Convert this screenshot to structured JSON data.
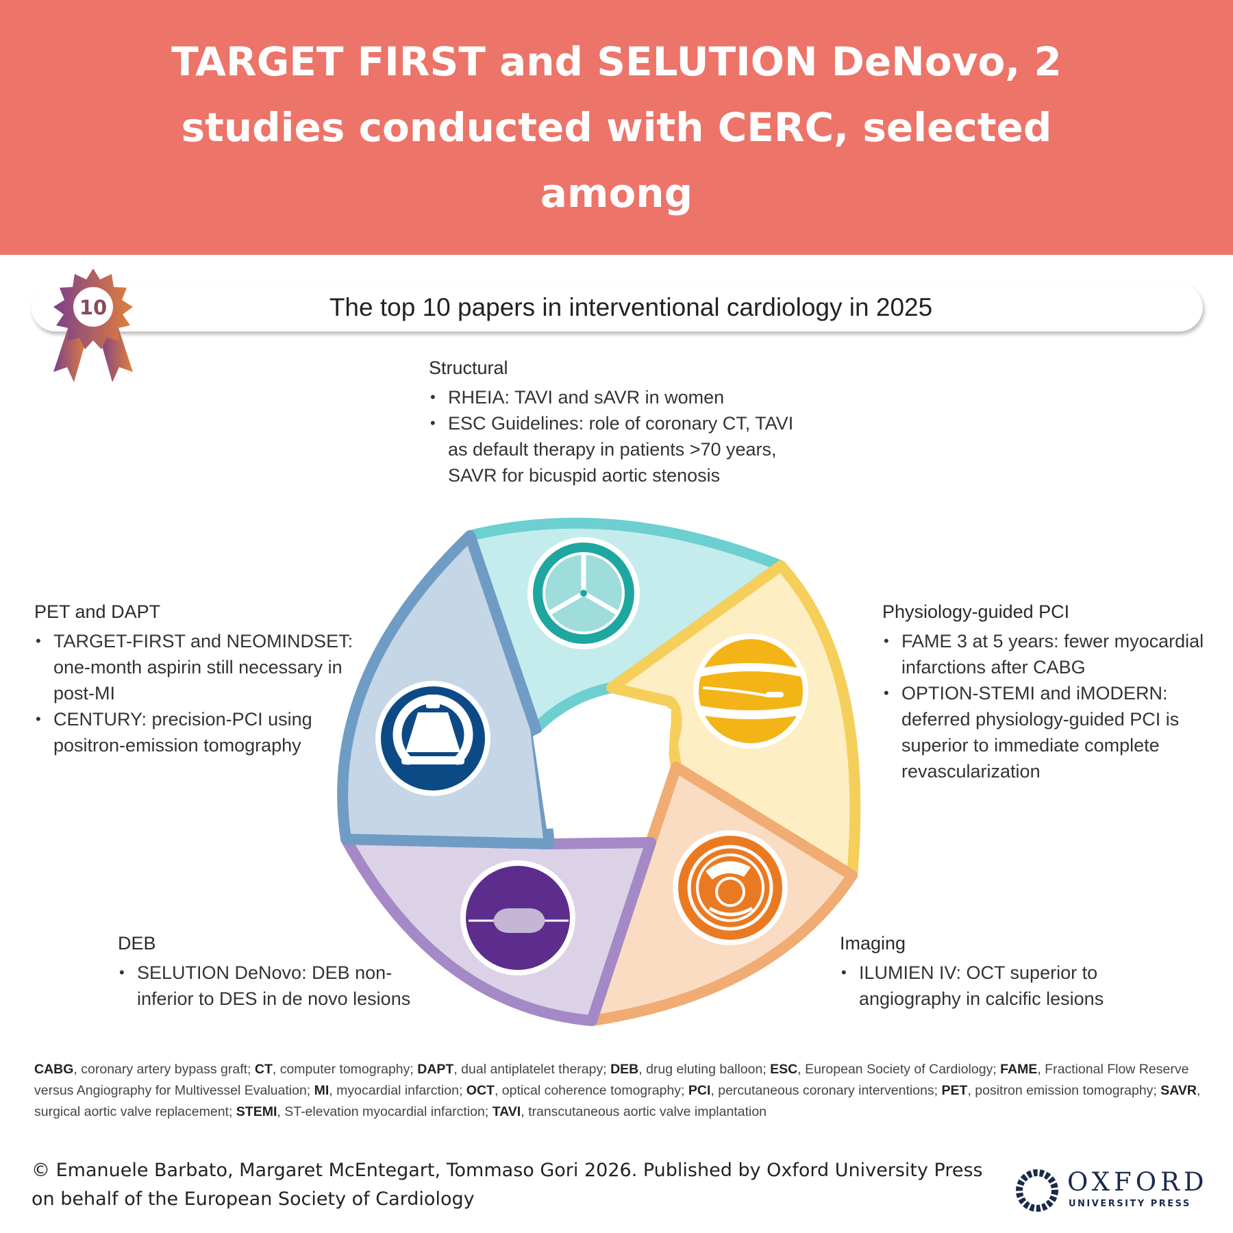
{
  "banner": {
    "title": "TARGET FIRST and SELUTION DeNovo, 2 studies conducted with CERC, selected among"
  },
  "figure": {
    "title": "The top 10 papers in interventional cardiology in 2025",
    "badge_number": "10"
  },
  "sections": {
    "structural": {
      "title": "Structural",
      "bullets": [
        "RHEIA: TAVI and sAVR in women",
        "ESC Guidelines: role of coronary CT, TAVI as default therapy in patients >70 years, SAVR for bicuspid aortic stenosis"
      ],
      "color": "#7dd3d3"
    },
    "physiology": {
      "title": "Physiology-guided PCI",
      "bullets": [
        "FAME 3 at 5 years: fewer myocardial infarctions after CABG",
        "OPTION-STEMI and iMODERN: deferred physiology-guided PCI is superior to immediate complete revascularization"
      ],
      "color": "#f6cf5a"
    },
    "imaging": {
      "title": "Imaging",
      "bullets": [
        "ILUMIEN IV: OCT superior to angiography in calcific lesions"
      ],
      "color": "#f0ac72"
    },
    "deb": {
      "title": "DEB",
      "bullets": [
        "SELUTION DeNovo: DEB non-inferior to DES in de novo lesions"
      ],
      "color": "#a489c6"
    },
    "pet": {
      "title": "PET and DAPT",
      "bullets": [
        "TARGET-FIRST and NEOMINDSET: one-month aspirin still necessary in post-MI",
        "CENTURY: precision-PCI using positron-emission tomography"
      ],
      "color": "#6f9cc4"
    }
  },
  "abbreviations": [
    {
      "abbr": "CABG",
      "text": ", coronary artery bypass graft; "
    },
    {
      "abbr": "CT",
      "text": ", computer tomography; "
    },
    {
      "abbr": "DAPT",
      "text": ", dual antiplatelet therapy; "
    },
    {
      "abbr": "DEB",
      "text": ", drug eluting balloon; "
    },
    {
      "abbr": "ESC",
      "text": ", European Society of Cardiology; "
    },
    {
      "abbr": "FAME",
      "text": ", Fractional Flow Reserve versus Angiography for Multivessel Evaluation; "
    },
    {
      "abbr": "MI",
      "text": ", myocardial infarction; "
    },
    {
      "abbr": "OCT",
      "text": ", optical coherence tomography; "
    },
    {
      "abbr": "PCI",
      "text": ", percutaneous coronary interventions; "
    },
    {
      "abbr": "PET",
      "text": ", positron emission tomography; "
    },
    {
      "abbr": "SAVR",
      "text": ", surgical aortic valve replacement; "
    },
    {
      "abbr": "STEMI",
      "text": ", ST-elevation myocardial infarction; "
    },
    {
      "abbr": "TAVI",
      "text": ", transcutaneous aortic valve implantation"
    }
  ],
  "footer": {
    "copyright": "© Emanuele Barbato, Margaret McEntegart, Tommaso Gori 2026. Published by Oxford University Press on behalf of the European Society of Cardiology",
    "logo_word": "OXFORD",
    "logo_sub": "UNIVERSITY PRESS"
  }
}
